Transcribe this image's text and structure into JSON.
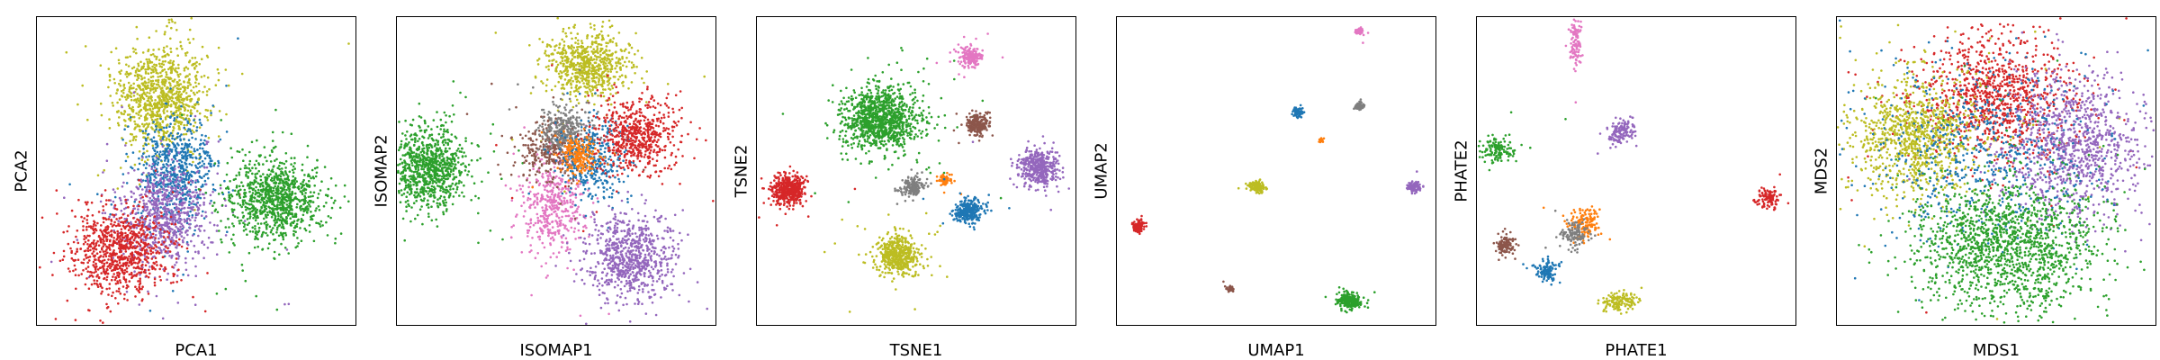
{
  "colors": {
    "blue": "#1f77b4",
    "orange": "#ff7f0e",
    "green": "#2ca02c",
    "red": "#d62728",
    "purple": "#9467bd",
    "brown": "#8c564b",
    "pink": "#e377c2",
    "gray": "#7f7f7f",
    "olive": "#bcbd22"
  },
  "chart_data": [
    {
      "type": "scatter",
      "xlabel": "PCA1",
      "ylabel": "PCA2",
      "xticks": [],
      "yticks": [],
      "xlim": [
        0,
        1
      ],
      "ylim": [
        0,
        1
      ],
      "grid": false,
      "clusters": [
        {
          "color": "olive",
          "x": 0.39,
          "y": 0.74,
          "sx": 0.07,
          "sy": 0.085,
          "n": 950
        },
        {
          "color": "blue",
          "x": 0.44,
          "y": 0.5,
          "sx": 0.06,
          "sy": 0.085,
          "n": 650
        },
        {
          "color": "purple",
          "x": 0.4,
          "y": 0.36,
          "sx": 0.07,
          "sy": 0.085,
          "n": 750
        },
        {
          "color": "red",
          "x": 0.26,
          "y": 0.24,
          "sx": 0.075,
          "sy": 0.065,
          "n": 850
        },
        {
          "color": "green",
          "x": 0.75,
          "y": 0.41,
          "sx": 0.075,
          "sy": 0.065,
          "n": 950
        }
      ]
    },
    {
      "type": "scatter",
      "xlabel": "ISOMAP1",
      "ylabel": "ISOMAP2",
      "xticks": [],
      "yticks": [],
      "xlim": [
        0,
        1
      ],
      "ylim": [
        0,
        1
      ],
      "grid": false,
      "clusters": [
        {
          "color": "green",
          "x": 0.1,
          "y": 0.51,
          "sx": 0.06,
          "sy": 0.065,
          "n": 900
        },
        {
          "color": "olive",
          "x": 0.6,
          "y": 0.84,
          "sx": 0.06,
          "sy": 0.05,
          "n": 700
        },
        {
          "color": "pink",
          "x": 0.49,
          "y": 0.38,
          "sx": 0.05,
          "sy": 0.08,
          "n": 450
        },
        {
          "color": "brown",
          "x": 0.48,
          "y": 0.57,
          "sx": 0.05,
          "sy": 0.05,
          "n": 300
        },
        {
          "color": "gray",
          "x": 0.53,
          "y": 0.63,
          "sx": 0.04,
          "sy": 0.04,
          "n": 300
        },
        {
          "color": "blue",
          "x": 0.62,
          "y": 0.53,
          "sx": 0.05,
          "sy": 0.065,
          "n": 350
        },
        {
          "color": "orange",
          "x": 0.57,
          "y": 0.55,
          "sx": 0.03,
          "sy": 0.03,
          "n": 200
        },
        {
          "color": "red",
          "x": 0.75,
          "y": 0.61,
          "sx": 0.06,
          "sy": 0.06,
          "n": 600
        },
        {
          "color": "purple",
          "x": 0.73,
          "y": 0.22,
          "sx": 0.07,
          "sy": 0.065,
          "n": 750
        }
      ]
    },
    {
      "type": "scatter",
      "xlabel": "TSNE1",
      "ylabel": "TSNE2",
      "xticks": [],
      "yticks": [],
      "xlim": [
        0,
        1
      ],
      "ylim": [
        0,
        1
      ],
      "grid": false,
      "clusters": [
        {
          "color": "green",
          "x": 0.39,
          "y": 0.67,
          "sx": 0.06,
          "sy": 0.05,
          "n": 1100
        },
        {
          "color": "pink",
          "x": 0.67,
          "y": 0.87,
          "sx": 0.015,
          "sy": 0.015,
          "n": 200
        },
        {
          "color": "brown",
          "x": 0.69,
          "y": 0.65,
          "sx": 0.018,
          "sy": 0.017,
          "n": 220
        },
        {
          "color": "purple",
          "x": 0.88,
          "y": 0.51,
          "sx": 0.03,
          "sy": 0.027,
          "n": 450
        },
        {
          "color": "red",
          "x": 0.1,
          "y": 0.44,
          "sx": 0.027,
          "sy": 0.025,
          "n": 450
        },
        {
          "color": "gray",
          "x": 0.49,
          "y": 0.45,
          "sx": 0.017,
          "sy": 0.015,
          "n": 180
        },
        {
          "color": "orange",
          "x": 0.59,
          "y": 0.47,
          "sx": 0.01,
          "sy": 0.008,
          "n": 80
        },
        {
          "color": "blue",
          "x": 0.66,
          "y": 0.37,
          "sx": 0.022,
          "sy": 0.02,
          "n": 300
        },
        {
          "color": "olive",
          "x": 0.44,
          "y": 0.23,
          "sx": 0.035,
          "sy": 0.03,
          "n": 500
        }
      ]
    },
    {
      "type": "scatter",
      "xlabel": "UMAP1",
      "ylabel": "UMAP2",
      "xticks": [],
      "yticks": [],
      "xlim": [
        0,
        1
      ],
      "ylim": [
        0,
        1
      ],
      "grid": false,
      "clusters": [
        {
          "color": "pink",
          "x": 0.76,
          "y": 0.95,
          "sx": 0.006,
          "sy": 0.006,
          "n": 60
        },
        {
          "color": "blue",
          "x": 0.57,
          "y": 0.69,
          "sx": 0.007,
          "sy": 0.007,
          "n": 70
        },
        {
          "color": "gray",
          "x": 0.76,
          "y": 0.71,
          "sx": 0.006,
          "sy": 0.006,
          "n": 60
        },
        {
          "color": "orange",
          "x": 0.64,
          "y": 0.6,
          "sx": 0.004,
          "sy": 0.004,
          "n": 20
        },
        {
          "color": "olive",
          "x": 0.44,
          "y": 0.45,
          "sx": 0.012,
          "sy": 0.01,
          "n": 120
        },
        {
          "color": "purple",
          "x": 0.93,
          "y": 0.45,
          "sx": 0.01,
          "sy": 0.009,
          "n": 100
        },
        {
          "color": "red",
          "x": 0.07,
          "y": 0.32,
          "sx": 0.01,
          "sy": 0.009,
          "n": 110
        },
        {
          "color": "brown",
          "x": 0.36,
          "y": 0.12,
          "sx": 0.006,
          "sy": 0.006,
          "n": 40
        },
        {
          "color": "green",
          "x": 0.73,
          "y": 0.08,
          "sx": 0.018,
          "sy": 0.014,
          "n": 200
        }
      ]
    },
    {
      "type": "scatter",
      "xlabel": "PHATE1",
      "ylabel": "PHATE2",
      "xticks": [],
      "yticks": [],
      "xlim": [
        0,
        1
      ],
      "ylim": [
        0,
        1
      ],
      "grid": false,
      "clusters": [
        {
          "color": "pink",
          "x": 0.31,
          "y": 0.91,
          "sx": 0.008,
          "sy": 0.035,
          "n": 110
        },
        {
          "color": "green",
          "x": 0.07,
          "y": 0.57,
          "sx": 0.025,
          "sy": 0.02,
          "n": 130
        },
        {
          "color": "purple",
          "x": 0.45,
          "y": 0.62,
          "sx": 0.02,
          "sy": 0.018,
          "n": 140
        },
        {
          "color": "red",
          "x": 0.91,
          "y": 0.41,
          "sx": 0.018,
          "sy": 0.015,
          "n": 110
        },
        {
          "color": "orange",
          "x": 0.34,
          "y": 0.33,
          "sx": 0.025,
          "sy": 0.025,
          "n": 140
        },
        {
          "color": "gray",
          "x": 0.31,
          "y": 0.29,
          "sx": 0.022,
          "sy": 0.022,
          "n": 120
        },
        {
          "color": "brown",
          "x": 0.09,
          "y": 0.26,
          "sx": 0.015,
          "sy": 0.018,
          "n": 110
        },
        {
          "color": "blue",
          "x": 0.22,
          "y": 0.18,
          "sx": 0.017,
          "sy": 0.018,
          "n": 120
        },
        {
          "color": "olive",
          "x": 0.45,
          "y": 0.08,
          "sx": 0.03,
          "sy": 0.015,
          "n": 140
        }
      ]
    },
    {
      "type": "scatter",
      "xlabel": "MDS1",
      "ylabel": "MDS2",
      "xticks": [],
      "yticks": [],
      "xlim": [
        0,
        1
      ],
      "ylim": [
        0,
        1
      ],
      "grid": false,
      "clusters": [
        {
          "color": "red",
          "x": 0.5,
          "y": 0.74,
          "sx": 0.12,
          "sy": 0.1,
          "n": 1000
        },
        {
          "color": "olive",
          "x": 0.25,
          "y": 0.62,
          "sx": 0.1,
          "sy": 0.1,
          "n": 1000
        },
        {
          "color": "purple",
          "x": 0.75,
          "y": 0.58,
          "sx": 0.11,
          "sy": 0.11,
          "n": 1000
        },
        {
          "color": "blue",
          "x": 0.45,
          "y": 0.56,
          "sx": 0.18,
          "sy": 0.14,
          "n": 600
        },
        {
          "color": "green",
          "x": 0.53,
          "y": 0.26,
          "sx": 0.14,
          "sy": 0.11,
          "n": 1500
        }
      ]
    }
  ]
}
